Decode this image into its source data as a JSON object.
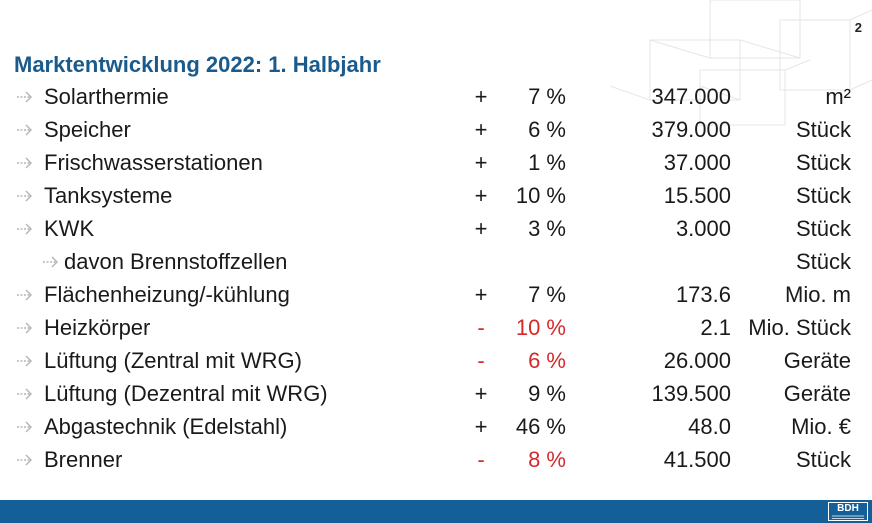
{
  "page_number": "2",
  "title": "Marktentwicklung 2022: 1. Halbjahr",
  "rows": [
    {
      "name": "Solarthermie",
      "sign": "+",
      "pct": "7 %",
      "amount": "347.000",
      "unit": "m²",
      "negative": false,
      "sub": false
    },
    {
      "name": "Speicher",
      "sign": "+",
      "pct": "6 %",
      "amount": "379.000",
      "unit": "Stück",
      "negative": false,
      "sub": false
    },
    {
      "name": "Frischwasserstationen",
      "sign": "+",
      "pct": "1 %",
      "amount": "37.000",
      "unit": "Stück",
      "negative": false,
      "sub": false
    },
    {
      "name": "Tanksysteme",
      "sign": "+",
      "pct": "10 %",
      "amount": "15.500",
      "unit": "Stück",
      "negative": false,
      "sub": false
    },
    {
      "name": "KWK",
      "sign": "+",
      "pct": "3 %",
      "amount": "3.000",
      "unit": "Stück",
      "negative": false,
      "sub": false
    },
    {
      "name": "davon Brennstoffzellen",
      "sign": "",
      "pct": "",
      "amount": "",
      "unit": "Stück",
      "negative": false,
      "sub": true
    },
    {
      "name": "Flächenheizung/-kühlung",
      "sign": "+",
      "pct": "7 %",
      "amount": "173.6",
      "unit": "Mio. m",
      "negative": false,
      "sub": false
    },
    {
      "name": "Heizkörper",
      "sign": "-",
      "pct": "10 %",
      "amount": "2.1",
      "unit": "Mio. Stück",
      "negative": true,
      "sub": false
    },
    {
      "name": "Lüftung (Zentral mit WRG)",
      "sign": "-",
      "pct": "6 %",
      "amount": "26.000",
      "unit": "Geräte",
      "negative": true,
      "sub": false
    },
    {
      "name": "Lüftung (Dezentral mit WRG)",
      "sign": "+",
      "pct": "9 %",
      "amount": "139.500",
      "unit": "Geräte",
      "negative": false,
      "sub": false
    },
    {
      "name": "Abgastechnik (Edelstahl)",
      "sign": "+",
      "pct": "46 %",
      "amount": "48.0",
      "unit": "Mio. €",
      "negative": false,
      "sub": false
    },
    {
      "name": "Brenner",
      "sign": "-",
      "pct": "8 %",
      "amount": "41.500",
      "unit": "Stück",
      "negative": true,
      "sub": false
    }
  ],
  "footer": {
    "logo_text": "BDH",
    "color": "#155f98"
  },
  "colors": {
    "title": "#1a5b8c",
    "negative": "#d42a2a",
    "arrow": "#b5b5b5"
  }
}
